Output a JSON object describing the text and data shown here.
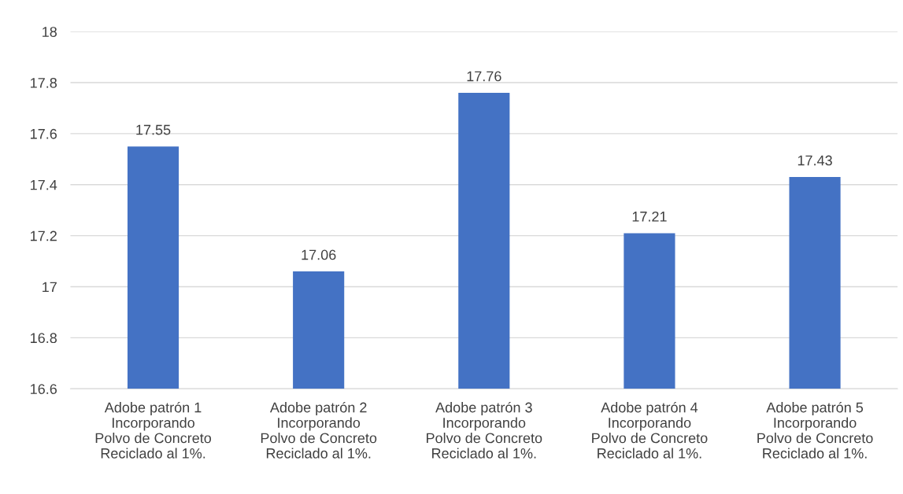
{
  "chart_data": {
    "type": "bar",
    "categories": [
      "Adobe patrón 1\nIncorporando\nPolvo de Concreto\nReciclado al 1%.",
      "Adobe patrón 2\nIncorporando\nPolvo de Concreto\nReciclado al 1%.",
      "Adobe patrón 3\nIncorporando\nPolvo de Concreto\nReciclado al 1%.",
      "Adobe patrón 4\nIncorporando\nPolvo de Concreto\nReciclado al 1%.",
      "Adobe patrón 5\nIncorporando\nPolvo de Concreto\nReciclado al 1%."
    ],
    "values": [
      17.55,
      17.06,
      17.76,
      17.21,
      17.43
    ],
    "color": "#4472c4",
    "ylim": [
      16.6,
      18
    ],
    "yticks": [
      16.6,
      16.8,
      17,
      17.2,
      17.4,
      17.6,
      17.8,
      18
    ],
    "grid": "y",
    "data_labels": true
  }
}
